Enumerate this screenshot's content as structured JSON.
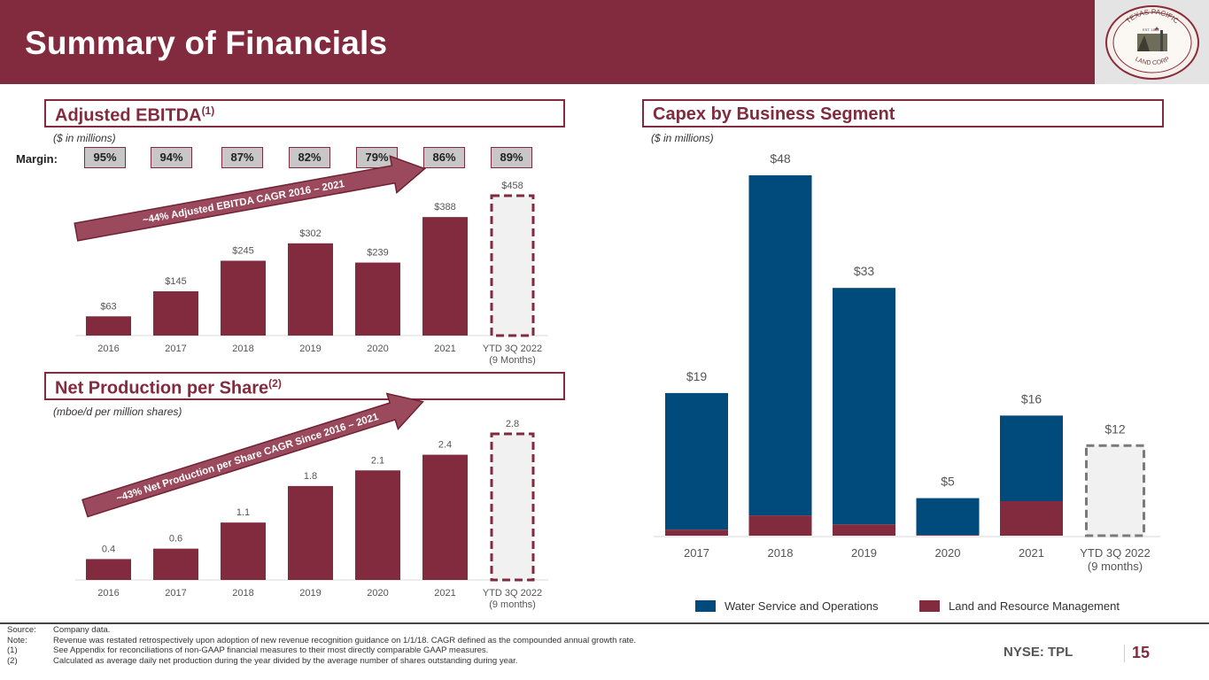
{
  "header": {
    "title": "Summary of Financials",
    "logo_text_top": "TEXAS PACIFIC",
    "logo_text_bottom": "LAND CORP",
    "logo_est": "EST. 1888"
  },
  "colors": {
    "brand": "#822b3e",
    "water": "#004a7c",
    "land": "#822b3e",
    "ytd_fill": "#f1f1f1",
    "label_gray": "#555555"
  },
  "ebitda": {
    "title": "Adjusted EBITDA",
    "title_sup": "(1)",
    "units": "($ in millions)",
    "margin_label": "Margin:",
    "margins": [
      "95%",
      "94%",
      "87%",
      "82%",
      "79%",
      "86%",
      "89%"
    ],
    "arrow_text": "~44% Adjusted EBITDA CAGR 2016 – 2021"
  },
  "production": {
    "title": "Net Production per Share",
    "title_sup": "(2)",
    "units": "(mboe/d per million shares)",
    "arrow_text": "~43% Net Production per Share CAGR Since 2016 – 2021"
  },
  "capex": {
    "title": "Capex by Business Segment",
    "units": "($ in millions)"
  },
  "chart_data": [
    {
      "id": "ebitda",
      "type": "bar",
      "title": "Adjusted EBITDA",
      "ylabel": "$ in millions",
      "categories": [
        "2016",
        "2017",
        "2018",
        "2019",
        "2020",
        "2021",
        "YTD 3Q 2022\n(9 Months)"
      ],
      "values": [
        63,
        145,
        245,
        302,
        239,
        388,
        458
      ],
      "data_labels": [
        "$63",
        "$145",
        "$245",
        "$302",
        "$239",
        "$388",
        "$458"
      ],
      "highlight_last": "dashed-outline",
      "ylim": [
        0,
        470
      ],
      "grid": false
    },
    {
      "id": "production",
      "type": "bar",
      "title": "Net Production per Share",
      "ylabel": "mboe/d per million shares",
      "categories": [
        "2016",
        "2017",
        "2018",
        "2019",
        "2020",
        "2021",
        "YTD 3Q 2022\n(9 months)"
      ],
      "values": [
        0.4,
        0.6,
        1.1,
        1.8,
        2.1,
        2.4,
        2.8
      ],
      "data_labels": [
        "0.4",
        "0.6",
        "1.1",
        "1.8",
        "2.1",
        "2.4",
        "2.8"
      ],
      "highlight_last": "dashed-outline",
      "ylim": [
        0,
        2.9
      ],
      "grid": false
    },
    {
      "id": "capex",
      "type": "bar",
      "stacked": true,
      "title": "Capex by Business Segment",
      "ylabel": "$ in millions",
      "categories": [
        "2017",
        "2018",
        "2019",
        "2020",
        "2021",
        "YTD 3Q 2022\n(9 months)"
      ],
      "totals": [
        19,
        48,
        33,
        5,
        16,
        12
      ],
      "data_labels": [
        "$19",
        "$48",
        "$33",
        "$5",
        "$16",
        "$12"
      ],
      "series": [
        {
          "name": "Land and Resource Management",
          "values": [
            0.8,
            2.7,
            1.5,
            0.1,
            4.6,
            null
          ]
        },
        {
          "name": "Water Service and Operations",
          "values": [
            18.2,
            45.3,
            31.5,
            4.9,
            11.4,
            null
          ]
        }
      ],
      "highlight_last": "dashed-outline",
      "legend": [
        "Water Service and Operations",
        "Land and Resource Management"
      ],
      "legend_position": "bottom",
      "ylim": [
        0,
        50
      ],
      "grid": false
    }
  ],
  "footer": {
    "notes": [
      {
        "key": "Source:",
        "text": "Company data."
      },
      {
        "key": "Note:",
        "text": "Revenue was restated retrospectively upon adoption of new revenue recognition guidance on 1/1/18. CAGR defined as the compounded annual growth rate."
      },
      {
        "key": "(1)",
        "text": "See Appendix for reconciliations of non-GAAP financial measures to their most directly comparable GAAP measures."
      },
      {
        "key": "(2)",
        "text": "Calculated as average daily net production during the year divided by the average number of shares outstanding during year."
      }
    ],
    "ticker": "NYSE: TPL",
    "page": "15"
  }
}
